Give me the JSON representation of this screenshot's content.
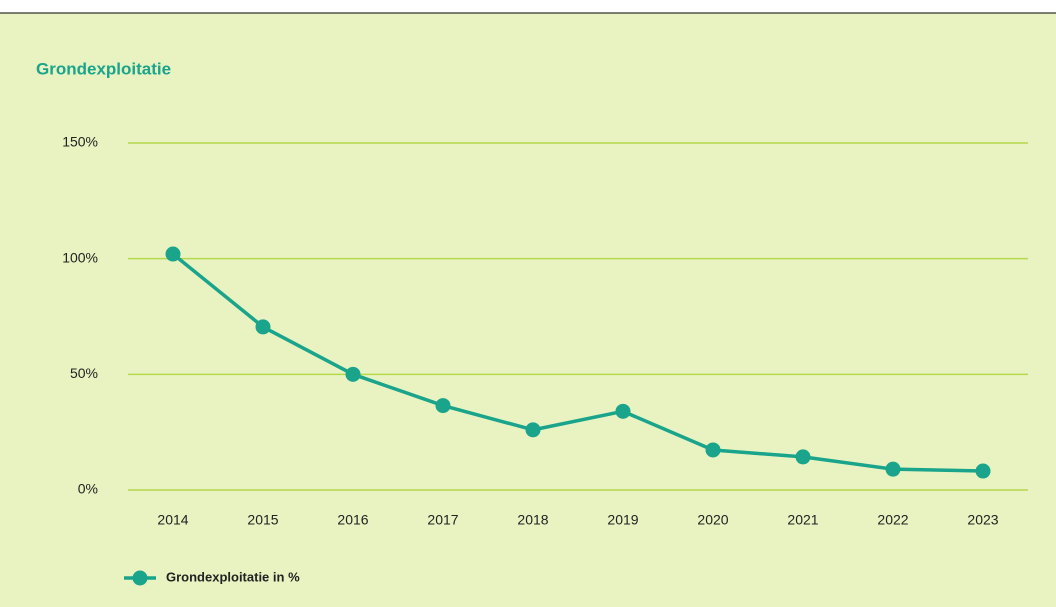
{
  "chart_data": {
    "type": "line",
    "title": "Grondexploitatie",
    "categories": [
      "2014",
      "2015",
      "2016",
      "2017",
      "2018",
      "2019",
      "2020",
      "2021",
      "2022",
      "2023"
    ],
    "series": [
      {
        "name": "Grondexploitatie in %",
        "color": "#19a48b",
        "values": [
          102,
          70.5,
          50,
          36.5,
          26,
          34,
          17.3,
          14.3,
          9,
          8.2
        ]
      }
    ],
    "ylim": [
      0,
      150
    ],
    "yticks": [
      {
        "value": 0,
        "label": "0%"
      },
      {
        "value": 50,
        "label": "50%"
      },
      {
        "value": 100,
        "label": "100%"
      },
      {
        "value": 150,
        "label": "150%"
      }
    ],
    "grid": true,
    "legend": "bottom-left"
  }
}
